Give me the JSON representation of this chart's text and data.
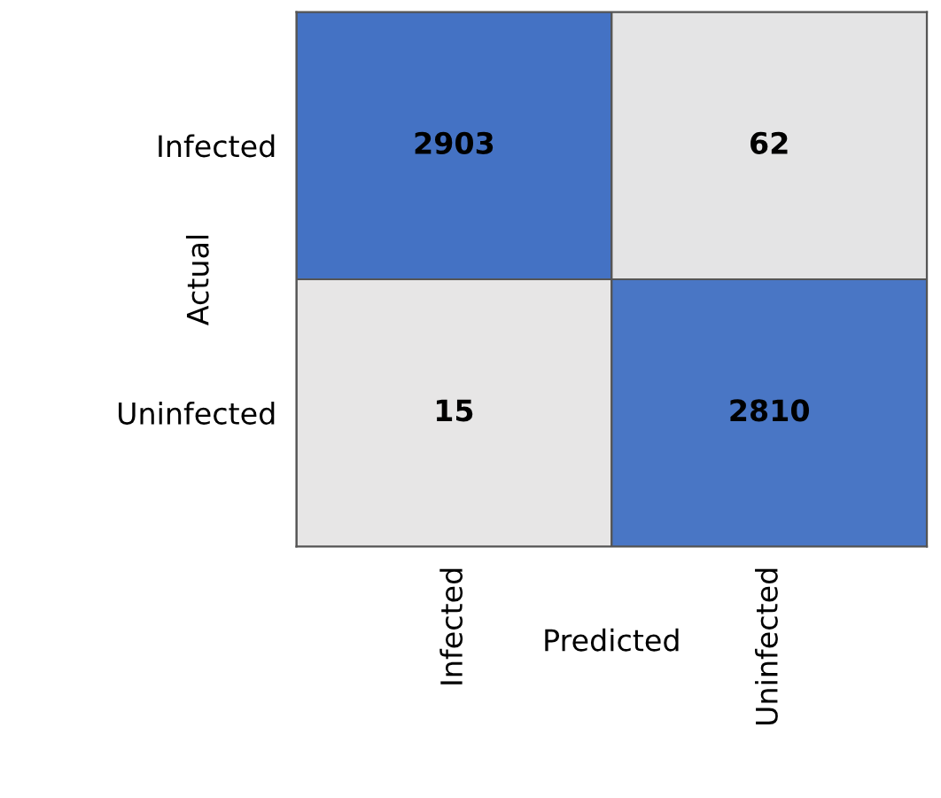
{
  "chart_data": {
    "type": "heatmap",
    "xlabel": "Predicted",
    "ylabel": "Actual",
    "categories": [
      "Infected",
      "Uninfected"
    ],
    "y_categories": [
      "Infected",
      "Uninfected"
    ],
    "cells": [
      [
        2903,
        62
      ],
      [
        15,
        2810
      ]
    ],
    "colors": [
      "#e7e6e6",
      "#4472c4"
    ],
    "data_labels": true
  }
}
